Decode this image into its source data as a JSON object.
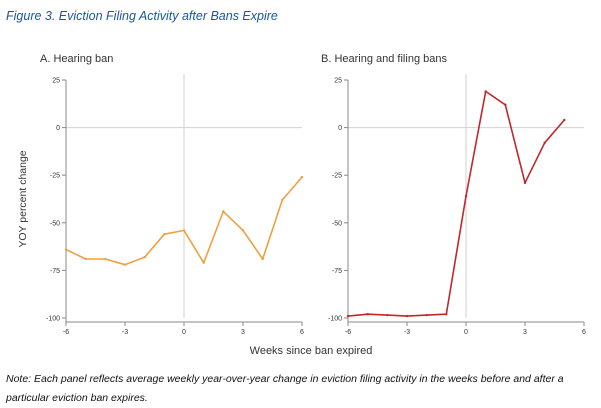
{
  "figure_title": "Figure 3. Eviction Filing Activity after Bans Expire",
  "note": "Note: Each panel reflects average weekly year-over-year change in eviction filing activity in the weeks before and after a particular eviction ban expires.",
  "colors": {
    "panel_a_line": "#f0a040",
    "panel_b_line": "#c0282e",
    "grid": "#d2d2d2",
    "axis": "#888888"
  },
  "chart_data": {
    "type": "line",
    "ylabel": "YOY percent change",
    "xlabel": "Weeks since ban expired",
    "panels": [
      {
        "title": "A. Hearing ban",
        "x": [
          -6,
          -5,
          -4,
          -3,
          -2,
          -1,
          0,
          1,
          2,
          3,
          4,
          5,
          6
        ],
        "values": [
          -64,
          -69,
          -69,
          -72,
          -68,
          -56,
          -54,
          -71,
          -44,
          -54,
          -69,
          -38,
          -26
        ],
        "xlim": [
          -6,
          6
        ],
        "ylim": [
          -100,
          25
        ],
        "xticks": [
          -6,
          -3,
          0,
          3,
          6
        ],
        "yticks": [
          25,
          0,
          -25,
          -50,
          -75,
          -100
        ]
      },
      {
        "title": "B. Hearing and filing bans",
        "x": [
          -6,
          -5,
          -4,
          -3,
          -2,
          -1,
          0,
          1,
          2,
          3,
          4,
          5
        ],
        "values": [
          -99,
          -98,
          -98.5,
          -99,
          -98.5,
          -98,
          -36,
          19,
          12,
          -29,
          -8,
          4
        ],
        "xlim": [
          -6,
          6
        ],
        "ylim": [
          -100,
          25
        ],
        "xticks": [
          -6,
          -3,
          0,
          3,
          6
        ],
        "yticks": [
          25,
          0,
          -25,
          -50,
          -75,
          -100
        ]
      }
    ]
  }
}
